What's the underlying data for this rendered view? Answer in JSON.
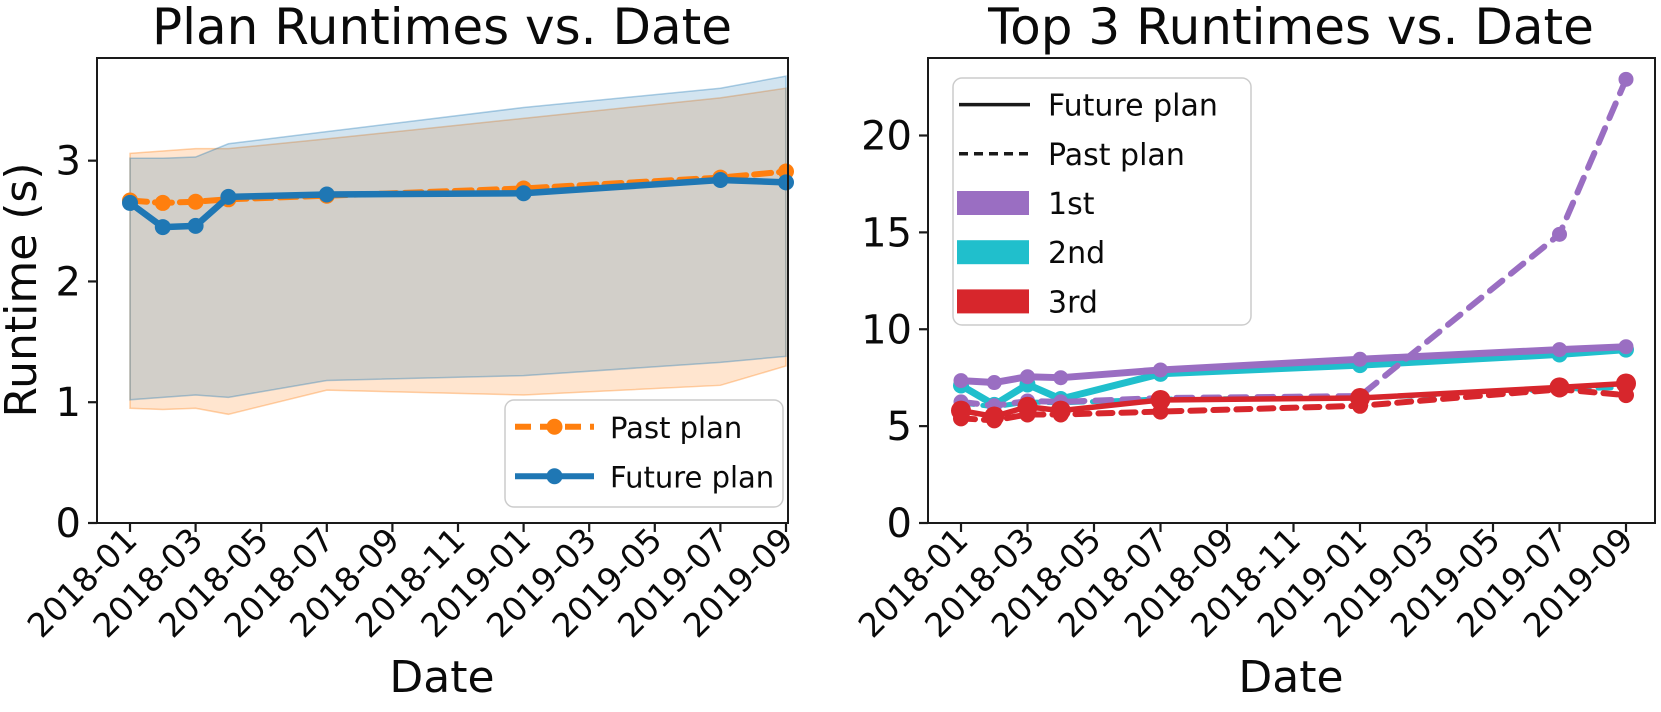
{
  "figure": {
    "background": "#ffffff",
    "text_color": "#0a0a0a",
    "spine_color": "#1a1a1a"
  },
  "chart_data": [
    {
      "type": "line",
      "title": "Plan Runtimes vs. Date",
      "xlabel": "Date",
      "ylabel": "Runtime (s)",
      "grid": false,
      "x_dates": [
        "2018-01",
        "2018-02",
        "2018-03",
        "2018-04",
        "2018-07",
        "2019-01",
        "2019-07",
        "2019-09"
      ],
      "x_months": [
        0,
        1,
        2,
        3,
        6,
        12,
        18,
        20
      ],
      "xtick_months": [
        0,
        2,
        4,
        6,
        8,
        10,
        12,
        14,
        16,
        18,
        20
      ],
      "xtick_labels": [
        "2018-01",
        "2018-03",
        "2018-05",
        "2018-07",
        "2018-09",
        "2018-11",
        "2019-01",
        "2019-03",
        "2019-05",
        "2019-07",
        "2019-09"
      ],
      "yticks": [
        0,
        1,
        2,
        3
      ],
      "ylim": [
        0,
        3.85
      ],
      "bands": [
        {
          "name": "Past plan range",
          "color": "#ff7f0e",
          "upper": [
            3.06,
            3.08,
            3.1,
            3.1,
            3.18,
            3.35,
            3.52,
            3.6
          ],
          "lower": [
            0.95,
            0.94,
            0.95,
            0.9,
            1.1,
            1.06,
            1.14,
            1.3
          ]
        },
        {
          "name": "Future plan range",
          "color": "#1f77b4",
          "upper": [
            3.02,
            3.02,
            3.03,
            3.14,
            3.24,
            3.44,
            3.6,
            3.7
          ],
          "lower": [
            1.02,
            1.04,
            1.06,
            1.04,
            1.18,
            1.22,
            1.33,
            1.38
          ]
        }
      ],
      "series": [
        {
          "name": "Past plan",
          "color": "#ff7f0e",
          "style": "dashed",
          "dash": "17 8",
          "width": 6,
          "marker": "circle",
          "marker_size": 8,
          "values": [
            2.67,
            2.65,
            2.66,
            2.68,
            2.71,
            2.77,
            2.86,
            2.91
          ]
        },
        {
          "name": "Future plan",
          "color": "#1f77b4",
          "style": "solid",
          "dash": "",
          "width": 6.5,
          "marker": "circle",
          "marker_size": 8,
          "values": [
            2.65,
            2.45,
            2.46,
            2.7,
            2.72,
            2.73,
            2.84,
            2.82
          ]
        }
      ],
      "legend": {
        "position": "lower right",
        "entries": [
          {
            "label": "Past plan",
            "kind": "line",
            "color": "#ff7f0e",
            "dashed": true,
            "marker": true
          },
          {
            "label": "Future plan",
            "kind": "line",
            "color": "#1f77b4",
            "dashed": false,
            "marker": true
          }
        ]
      }
    },
    {
      "type": "line",
      "title": "Top 3 Runtimes vs. Date",
      "xlabel": "Date",
      "ylabel": "",
      "grid": false,
      "x_dates": [
        "2018-01",
        "2018-02",
        "2018-03",
        "2018-04",
        "2018-07",
        "2019-01",
        "2019-07",
        "2019-09"
      ],
      "x_months": [
        0,
        1,
        2,
        3,
        6,
        12,
        18,
        20
      ],
      "xtick_months": [
        0,
        2,
        4,
        6,
        8,
        10,
        12,
        14,
        16,
        18,
        20
      ],
      "xtick_labels": [
        "2018-01",
        "2018-03",
        "2018-05",
        "2018-07",
        "2018-09",
        "2018-11",
        "2019-01",
        "2019-03",
        "2019-05",
        "2019-07",
        "2019-09"
      ],
      "yticks": [
        0,
        5,
        10,
        15,
        20
      ],
      "ylim": [
        0,
        24
      ],
      "bands": [],
      "series": [
        {
          "name": "2nd Future plan",
          "color": "#20bfcc",
          "style": "solid",
          "dash": "",
          "width": 7,
          "marker": "circle",
          "marker_size": 8,
          "values": [
            7.1,
            6.1,
            7.15,
            6.4,
            7.7,
            8.15,
            8.7,
            8.95
          ]
        },
        {
          "name": "1st Future plan",
          "color": "#9a6ec2",
          "style": "solid",
          "dash": "",
          "width": 7,
          "marker": "circle",
          "marker_size": 7.5,
          "values": [
            7.35,
            7.25,
            7.55,
            7.5,
            7.9,
            8.45,
            8.95,
            9.1
          ]
        },
        {
          "name": "2nd Past plan",
          "color": "#20bfcc",
          "style": "dashed",
          "dash": "13 9",
          "width": 5,
          "marker": "circle",
          "marker_size": 6.5,
          "values": [
            6.2,
            6.0,
            6.25,
            6.2,
            6.4,
            6.45,
            6.9,
            7.0
          ]
        },
        {
          "name": "1st Past plan",
          "color": "#9a6ec2",
          "style": "dashed",
          "dash": "16 11",
          "width": 6,
          "marker": "circle",
          "marker_size": 7.5,
          "values": [
            6.25,
            6.05,
            6.3,
            6.25,
            6.45,
            6.55,
            14.9,
            22.9
          ]
        },
        {
          "name": "3rd Past plan",
          "color": "#d7262c",
          "style": "dashed",
          "dash": "14 9",
          "width": 6,
          "marker": "circle",
          "marker_size": 8,
          "values": [
            5.4,
            5.3,
            5.6,
            5.6,
            5.75,
            6.05,
            6.9,
            6.6
          ]
        },
        {
          "name": "3rd Future plan",
          "color": "#d7262c",
          "style": "solid",
          "dash": "",
          "width": 5.5,
          "marker": "circle",
          "marker_size": 10,
          "values": [
            5.8,
            5.5,
            6.0,
            5.8,
            6.35,
            6.45,
            7.0,
            7.2
          ]
        }
      ],
      "legend": {
        "position": "upper left",
        "entries": [
          {
            "label": "Future plan",
            "kind": "line",
            "color": "#1a1a1a",
            "dashed": false,
            "marker": false
          },
          {
            "label": "Past plan",
            "kind": "line",
            "color": "#1a1a1a",
            "dashed": true,
            "marker": false
          },
          {
            "label": "1st",
            "kind": "patch",
            "color": "#9a6ec2"
          },
          {
            "label": "2nd",
            "kind": "patch",
            "color": "#20bfcc"
          },
          {
            "label": "3rd",
            "kind": "patch",
            "color": "#d7262c"
          }
        ]
      }
    }
  ]
}
